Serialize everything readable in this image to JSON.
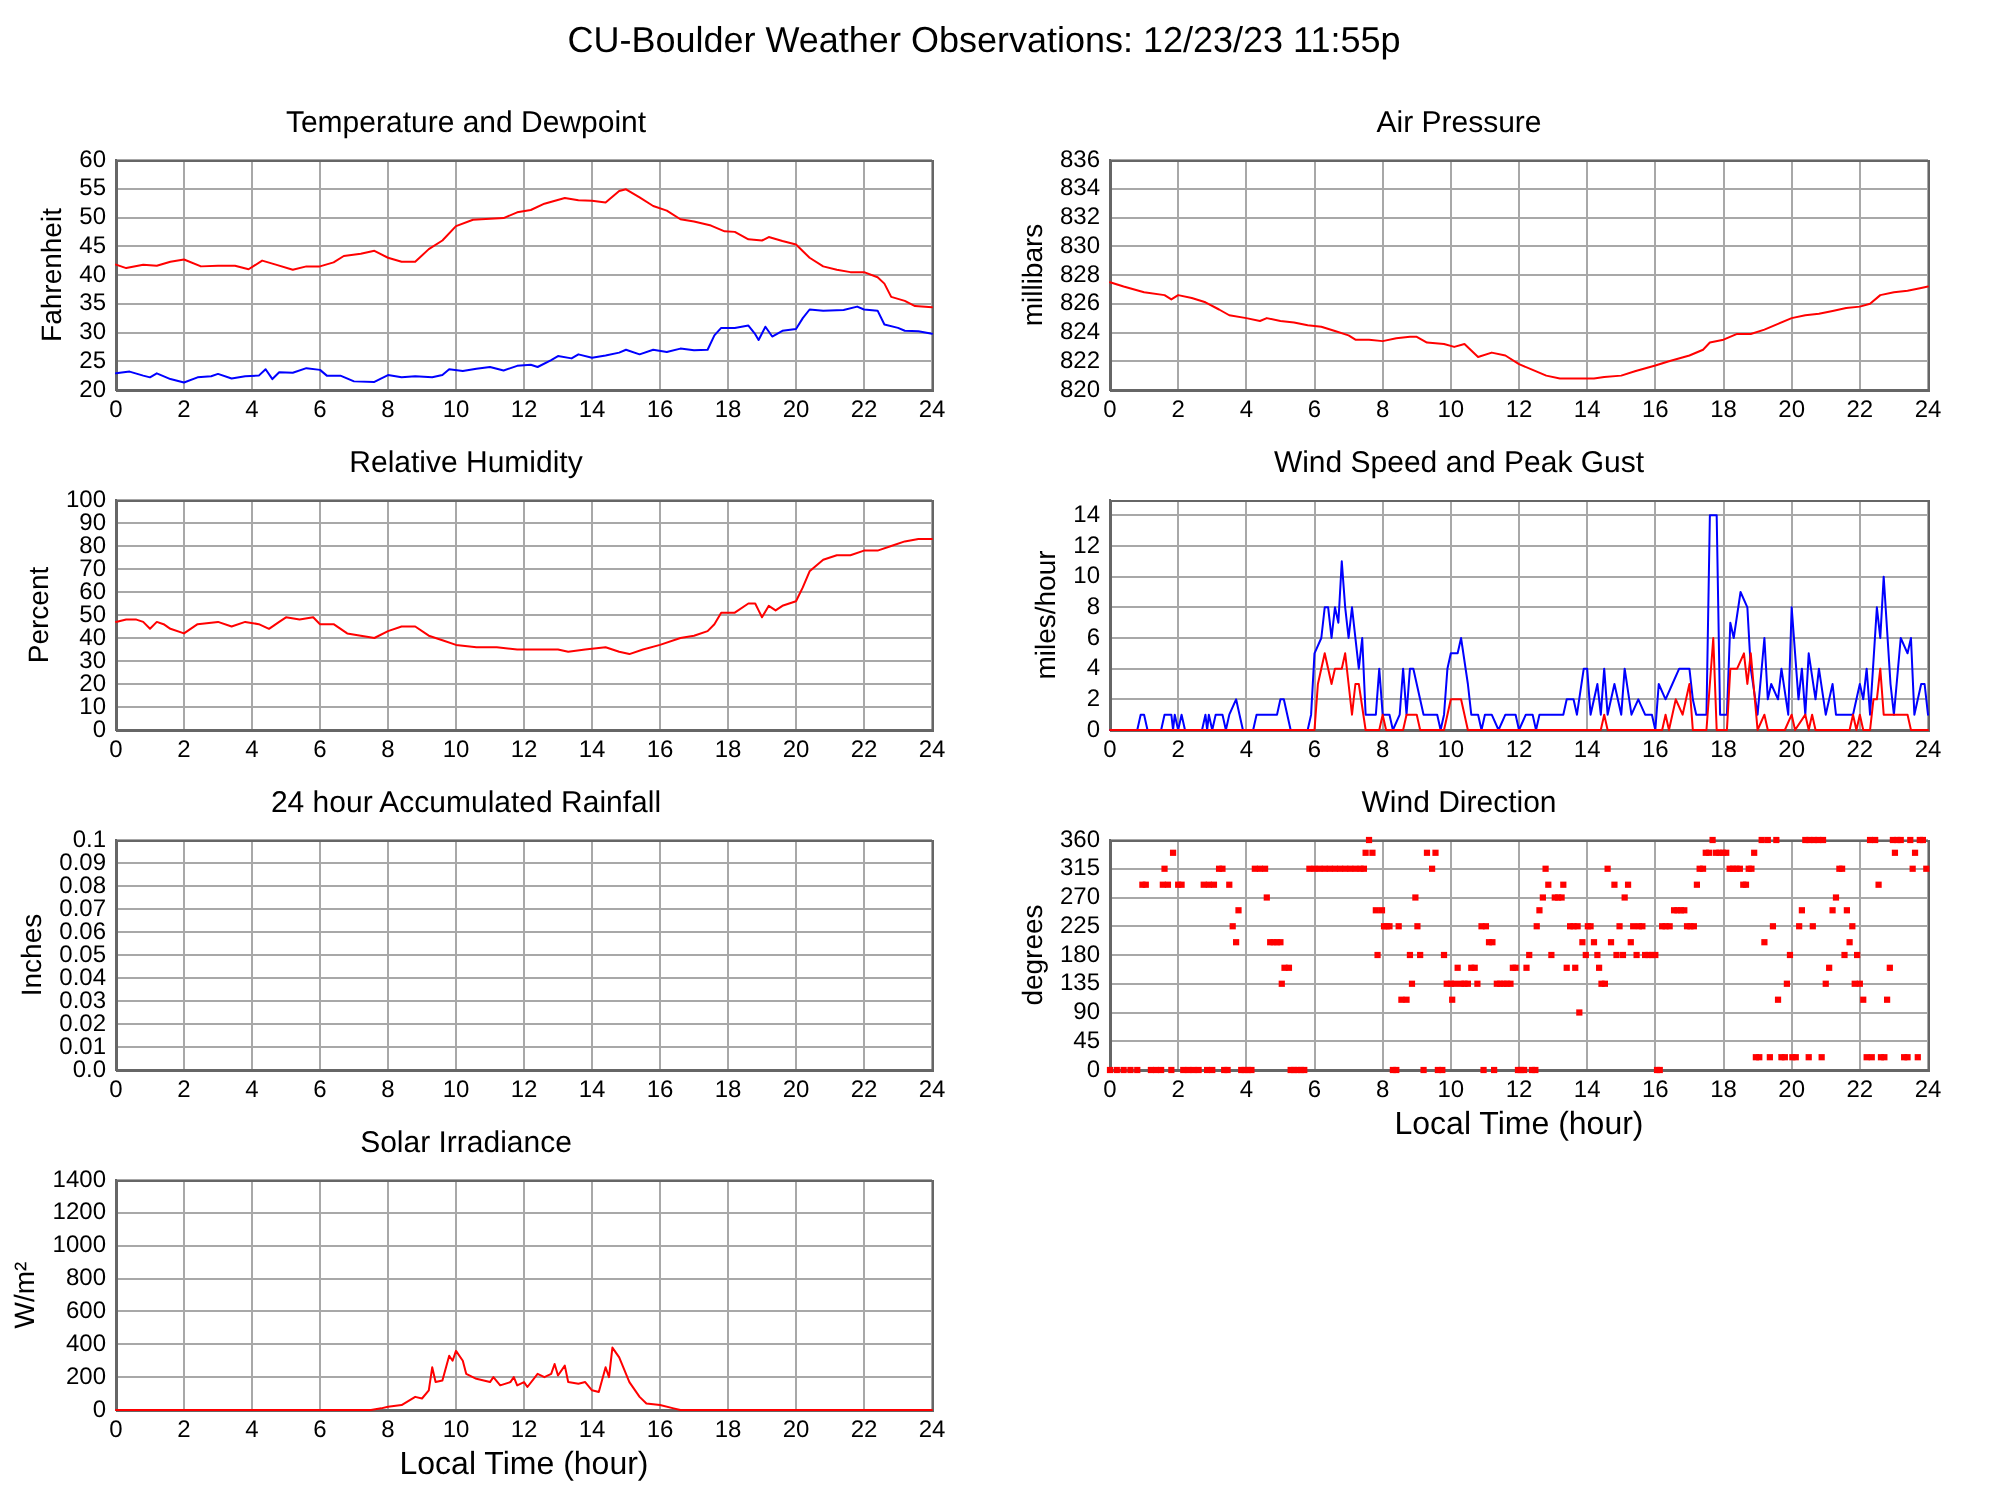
{
  "chart_data": [
    {
      "type": "other",
      "title": "CU-Boulder Weather Observations: 12/23/23 11:55p"
    },
    {
      "type": "line",
      "title": "Temperature and Dewpoint",
      "ylabel": "Fahrenheit",
      "xlim": [
        0,
        24
      ],
      "xticks": [
        0,
        2,
        4,
        6,
        8,
        10,
        12,
        14,
        16,
        18,
        20,
        22,
        24
      ],
      "ylim": [
        20,
        60
      ],
      "yticks": [
        20,
        25,
        30,
        35,
        40,
        45,
        50,
        55,
        60
      ],
      "grid": true,
      "series": [
        {
          "color": "#ff0000",
          "x": [
            0,
            0.3,
            0.8,
            1.2,
            1.6,
            2.0,
            2.5,
            3.0,
            3.5,
            3.9,
            4.3,
            4.7,
            5.2,
            5.6,
            6.0,
            6.4,
            6.7,
            7.2,
            7.6,
            8.0,
            8.4,
            8.8,
            9.2,
            9.6,
            10.0,
            10.5,
            11.0,
            11.4,
            11.8,
            12.2,
            12.6,
            13.2,
            13.6,
            14.0,
            14.4,
            14.8,
            15.0,
            15.4,
            15.8,
            16.2,
            16.6,
            17.0,
            17.5,
            17.9,
            18.2,
            18.6,
            19.0,
            19.2,
            19.6,
            20.0,
            20.4,
            20.8,
            21.2,
            21.6,
            22.0,
            22.4,
            22.6,
            22.8,
            23.2,
            23.5,
            24.0
          ],
          "values": [
            41.8,
            41.2,
            41.8,
            41.6,
            42.3,
            42.7,
            41.5,
            41.6,
            41.6,
            41.0,
            42.5,
            41.8,
            40.9,
            41.5,
            41.5,
            42.2,
            43.3,
            43.7,
            44.2,
            43.0,
            42.3,
            42.3,
            44.5,
            46.0,
            48.5,
            49.6,
            49.8,
            49.9,
            50.9,
            51.3,
            52.4,
            53.4,
            53.0,
            52.9,
            52.6,
            54.6,
            54.9,
            53.5,
            52.0,
            51.2,
            49.7,
            49.3,
            48.6,
            47.6,
            47.5,
            46.2,
            46.0,
            46.6,
            45.9,
            45.3,
            43.0,
            41.5,
            40.9,
            40.5,
            40.5,
            39.6,
            38.5,
            36.2,
            35.5,
            34.6,
            34.4
          ]
        },
        {
          "color": "#0000ff",
          "x": [
            0,
            0.4,
            0.8,
            1.0,
            1.2,
            1.6,
            2.0,
            2.4,
            2.8,
            3.0,
            3.4,
            3.8,
            4.2,
            4.4,
            4.6,
            4.8,
            5.2,
            5.6,
            6.0,
            6.2,
            6.6,
            7.0,
            7.6,
            8.0,
            8.4,
            8.8,
            9.3,
            9.6,
            9.8,
            10.2,
            10.6,
            11.0,
            11.4,
            11.8,
            12.2,
            12.4,
            12.8,
            13.0,
            13.4,
            13.6,
            14.0,
            14.4,
            14.8,
            15.0,
            15.4,
            15.8,
            16.2,
            16.6,
            17.0,
            17.4,
            17.6,
            17.8,
            18.2,
            18.6,
            18.8,
            18.9,
            19.1,
            19.3,
            19.6,
            20.0,
            20.2,
            20.4,
            20.8,
            21.4,
            21.8,
            22.0,
            22.4,
            22.6,
            23.0,
            23.2,
            23.6,
            24.0
          ],
          "values": [
            22.9,
            23.2,
            22.5,
            22.2,
            22.9,
            21.9,
            21.3,
            22.2,
            22.4,
            22.8,
            22.0,
            22.4,
            22.5,
            23.6,
            21.9,
            23.1,
            23.0,
            23.8,
            23.5,
            22.5,
            22.5,
            21.5,
            21.4,
            22.6,
            22.2,
            22.4,
            22.2,
            22.6,
            23.6,
            23.3,
            23.7,
            24.0,
            23.4,
            24.2,
            24.4,
            24.0,
            25.2,
            25.9,
            25.5,
            26.2,
            25.6,
            26.0,
            26.5,
            27.0,
            26.2,
            27.0,
            26.6,
            27.2,
            26.9,
            27.0,
            29.5,
            30.8,
            30.8,
            31.2,
            29.7,
            28.7,
            31.0,
            29.3,
            30.3,
            30.6,
            32.5,
            34.0,
            33.8,
            33.9,
            34.5,
            34.0,
            33.8,
            31.4,
            30.8,
            30.3,
            30.2,
            29.8
          ]
        }
      ]
    },
    {
      "type": "line",
      "title": "Air Pressure",
      "ylabel": "millibars",
      "xlim": [
        0,
        24
      ],
      "xticks": [
        0,
        2,
        4,
        6,
        8,
        10,
        12,
        14,
        16,
        18,
        20,
        22,
        24
      ],
      "ylim": [
        820,
        836
      ],
      "yticks": [
        820,
        822,
        824,
        826,
        828,
        830,
        832,
        834,
        836
      ],
      "grid": true,
      "series": [
        {
          "color": "#ff0000",
          "x": [
            0,
            0.4,
            1.0,
            1.6,
            1.8,
            2.0,
            2.4,
            2.8,
            3.2,
            3.5,
            4.0,
            4.4,
            4.6,
            5.0,
            5.4,
            5.8,
            6.2,
            6.6,
            7.0,
            7.2,
            7.6,
            8.0,
            8.4,
            8.8,
            9.0,
            9.3,
            9.8,
            10.1,
            10.4,
            10.8,
            11.2,
            11.6,
            12.0,
            12.4,
            12.8,
            13.2,
            13.8,
            14.2,
            14.5,
            15.0,
            15.4,
            16.0,
            16.4,
            17.0,
            17.4,
            17.6,
            18.0,
            18.4,
            18.8,
            19.2,
            19.6,
            20.0,
            20.4,
            20.8,
            21.2,
            21.6,
            22.0,
            22.3,
            22.6,
            23.0,
            23.4,
            23.8,
            24.0
          ],
          "values": [
            827.5,
            827.2,
            826.8,
            826.6,
            826.3,
            826.6,
            826.4,
            826.1,
            825.6,
            825.2,
            825.0,
            824.8,
            825.0,
            824.8,
            824.7,
            824.5,
            824.4,
            824.1,
            823.8,
            823.5,
            823.5,
            823.4,
            823.6,
            823.7,
            823.7,
            823.3,
            823.2,
            823.0,
            823.2,
            822.3,
            822.6,
            822.4,
            821.8,
            821.4,
            821.0,
            820.8,
            820.8,
            820.8,
            820.9,
            821.0,
            821.3,
            821.7,
            822.0,
            822.4,
            822.8,
            823.3,
            823.5,
            823.9,
            823.9,
            824.2,
            824.6,
            825.0,
            825.2,
            825.3,
            825.5,
            825.7,
            825.8,
            826.0,
            826.6,
            826.8,
            826.9,
            827.1,
            827.2
          ]
        }
      ]
    },
    {
      "type": "line",
      "title": "Relative Humidity",
      "ylabel": "Percent",
      "xlim": [
        0,
        24
      ],
      "xticks": [
        0,
        2,
        4,
        6,
        8,
        10,
        12,
        14,
        16,
        18,
        20,
        22,
        24
      ],
      "ylim": [
        0,
        100
      ],
      "yticks": [
        0,
        10,
        20,
        30,
        40,
        50,
        60,
        70,
        80,
        90,
        100
      ],
      "grid": true,
      "series": [
        {
          "color": "#ff0000",
          "x": [
            0,
            0.3,
            0.6,
            0.8,
            1.0,
            1.2,
            1.4,
            1.6,
            2.0,
            2.4,
            3.0,
            3.4,
            3.8,
            4.2,
            4.5,
            4.8,
            5.0,
            5.4,
            5.8,
            6.0,
            6.4,
            6.8,
            7.2,
            7.6,
            8.0,
            8.4,
            8.8,
            9.2,
            9.6,
            10.0,
            10.6,
            11.2,
            11.8,
            12.2,
            12.6,
            13.0,
            13.3,
            13.8,
            14.4,
            14.8,
            15.1,
            15.5,
            16.0,
            16.6,
            17.0,
            17.4,
            17.6,
            17.8,
            18.2,
            18.6,
            18.8,
            18.9,
            19.0,
            19.2,
            19.4,
            19.6,
            20.0,
            20.2,
            20.4,
            20.8,
            21.2,
            21.6,
            22.0,
            22.4,
            22.8,
            23.2,
            23.6,
            24.0
          ],
          "values": [
            47,
            48,
            48,
            47,
            44,
            47,
            46,
            44,
            42,
            46,
            47,
            45,
            47,
            46,
            44,
            47,
            49,
            48,
            49,
            46,
            46,
            42,
            41,
            40,
            43,
            45,
            45,
            41,
            39,
            37,
            36,
            36,
            35,
            35,
            35,
            35,
            34,
            35,
            36,
            34,
            33,
            35,
            37,
            40,
            41,
            43,
            46,
            51,
            51,
            55,
            55,
            52,
            49,
            54,
            52,
            54,
            56,
            62,
            69,
            74,
            76,
            76,
            78,
            78,
            80,
            82,
            83,
            83
          ]
        }
      ]
    },
    {
      "type": "line",
      "title": "Wind Speed and Peak Gust",
      "ylabel": "miles/hour",
      "xlim": [
        0,
        24
      ],
      "xticks": [
        0,
        2,
        4,
        6,
        8,
        10,
        12,
        14,
        16,
        18,
        20,
        22,
        24
      ],
      "ylim": [
        0,
        15
      ],
      "yticks": [
        0,
        2,
        4,
        6,
        8,
        10,
        12,
        14
      ],
      "grid": true,
      "series": [
        {
          "color": "#0000ff",
          "x": [
            0,
            0.8,
            0.9,
            1.0,
            1.1,
            1.5,
            1.6,
            1.8,
            1.85,
            1.9,
            2.0,
            2.1,
            2.2,
            2.7,
            2.8,
            2.85,
            2.9,
            3.0,
            3.1,
            3.3,
            3.4,
            3.5,
            3.7,
            3.8,
            3.9,
            4.2,
            4.3,
            4.9,
            5.0,
            5.1,
            5.3,
            5.8,
            5.9,
            6.0,
            6.2,
            6.3,
            6.4,
            6.5,
            6.6,
            6.7,
            6.8,
            6.9,
            7.0,
            7.1,
            7.3,
            7.4,
            7.5,
            7.8,
            7.9,
            8.0,
            8.2,
            8.3,
            8.5,
            8.6,
            8.7,
            8.8,
            8.9,
            9.2,
            9.6,
            9.7,
            9.8,
            9.9,
            10.0,
            10.2,
            10.3,
            10.5,
            10.6,
            10.8,
            10.9,
            11.0,
            11.2,
            11.4,
            11.6,
            11.9,
            12.0,
            12.2,
            12.4,
            12.5,
            12.6,
            13.3,
            13.4,
            13.6,
            13.7,
            13.9,
            14.0,
            14.1,
            14.3,
            14.4,
            14.5,
            14.6,
            14.8,
            15.0,
            15.1,
            15.3,
            15.5,
            15.7,
            15.9,
            16.0,
            16.1,
            16.3,
            16.5,
            16.7,
            17.0,
            17.1,
            17.2,
            17.5,
            17.6,
            17.8,
            17.9,
            18.1,
            18.2,
            18.3,
            18.5,
            18.7,
            18.8,
            19.0,
            19.2,
            19.3,
            19.4,
            19.6,
            19.7,
            19.9,
            20.0,
            20.2,
            20.3,
            20.4,
            20.5,
            20.7,
            20.8,
            21.0,
            21.2,
            21.3,
            21.8,
            21.9,
            22.0,
            22.1,
            22.2,
            22.3,
            22.5,
            22.6,
            22.7,
            22.9,
            23.0,
            23.2,
            23.4,
            23.5,
            23.6,
            23.8,
            23.9,
            24.0
          ],
          "values": [
            0,
            0,
            1,
            1,
            0,
            0,
            1,
            1,
            0,
            1,
            0,
            1,
            0,
            0,
            1,
            0,
            1,
            0,
            1,
            1,
            0,
            1,
            2,
            1,
            0,
            0,
            1,
            1,
            2,
            2,
            0,
            0,
            1,
            5,
            6,
            8,
            8,
            6,
            8,
            7,
            11,
            8,
            6,
            8,
            4,
            6,
            1,
            1,
            4,
            1,
            1,
            0,
            1,
            4,
            1,
            4,
            4,
            1,
            1,
            0,
            1,
            4,
            5,
            5,
            6,
            3,
            1,
            1,
            0,
            1,
            1,
            0,
            1,
            1,
            0,
            1,
            1,
            0,
            1,
            1,
            2,
            2,
            1,
            4,
            4,
            1,
            3,
            1,
            4,
            1,
            3,
            1,
            4,
            1,
            2,
            1,
            1,
            0,
            3,
            2,
            3,
            4,
            4,
            2,
            1,
            1,
            14,
            14,
            1,
            1,
            7,
            6,
            9,
            8,
            4,
            1,
            6,
            2,
            3,
            2,
            4,
            1,
            8,
            2,
            4,
            1,
            5,
            2,
            4,
            1,
            3,
            1,
            1,
            2,
            3,
            2,
            4,
            1,
            8,
            6,
            10,
            3,
            1,
            6,
            5,
            6,
            1,
            3,
            3,
            1
          ]
        },
        {
          "color": "#ff0000",
          "x": [
            0,
            6.0,
            6.1,
            6.3,
            6.5,
            6.6,
            6.8,
            6.9,
            7.0,
            7.1,
            7.2,
            7.3,
            7.5,
            7.9,
            8.0,
            8.1,
            8.6,
            8.7,
            9.0,
            9.1,
            9.8,
            9.9,
            10.0,
            10.3,
            10.5,
            14.4,
            14.5,
            14.6,
            16.2,
            16.3,
            16.4,
            16.6,
            16.8,
            17.0,
            17.1,
            17.5,
            17.7,
            17.8,
            18.1,
            18.2,
            18.4,
            18.6,
            18.7,
            18.8,
            19.0,
            19.2,
            19.3,
            19.8,
            20.0,
            20.1,
            20.4,
            20.5,
            20.6,
            20.7,
            21.7,
            21.8,
            21.9,
            22.0,
            22.1,
            22.3,
            22.4,
            22.5,
            22.6,
            22.7,
            23.0,
            23.4,
            23.5,
            24.0
          ],
          "values": [
            0,
            0,
            3,
            5,
            3,
            4,
            4,
            5,
            3,
            1,
            3,
            3,
            0,
            0,
            1,
            0,
            0,
            1,
            1,
            0,
            0,
            1,
            2,
            2,
            0,
            0,
            1,
            0,
            0,
            1,
            0,
            2,
            1,
            3,
            0,
            0,
            6,
            0,
            0,
            4,
            4,
            5,
            3,
            5,
            0,
            1,
            0,
            0,
            1,
            0,
            1,
            0,
            1,
            0,
            0,
            1,
            0,
            1,
            0,
            0,
            2,
            2,
            4,
            1,
            1,
            1,
            0,
            0
          ]
        }
      ]
    },
    {
      "type": "line",
      "title": "24 hour Accumulated Rainfall",
      "ylabel": "Inches",
      "xlim": [
        0,
        24
      ],
      "xticks": [
        0,
        2,
        4,
        6,
        8,
        10,
        12,
        14,
        16,
        18,
        20,
        22,
        24
      ],
      "ylim": [
        0,
        0.1
      ],
      "yticks": [
        {
          "value": 0,
          "label": "0.0"
        },
        0.01,
        0.02,
        0.03,
        0.04,
        0.05,
        0.06,
        0.07,
        0.08,
        0.09,
        0.1
      ],
      "grid": true
    },
    {
      "type": "scatter",
      "title": "Wind Direction",
      "xlabel": "Local Time (hour)",
      "ylabel": "degrees",
      "xlim": [
        0,
        24
      ],
      "xticks": [
        0,
        2,
        4,
        6,
        8,
        10,
        12,
        14,
        16,
        18,
        20,
        22,
        24
      ],
      "ylim": [
        0,
        360
      ],
      "yticks": [
        0,
        45,
        90,
        135,
        180,
        225,
        270,
        315,
        360
      ],
      "grid": true,
      "marker": "square",
      "series": [
        {
          "color": "#ff0000",
          "x": [
            0.0,
            0.2,
            0.4,
            0.6,
            0.8,
            0.95,
            1.05,
            1.2,
            1.35,
            1.5,
            1.55,
            1.6,
            1.7,
            1.8,
            1.85,
            2.0,
            2.1,
            2.15,
            2.3,
            2.45,
            2.6,
            2.75,
            2.85,
            2.9,
            3.0,
            3.05,
            3.2,
            3.3,
            3.35,
            3.45,
            3.5,
            3.6,
            3.7,
            3.77,
            3.85,
            3.95,
            4.05,
            4.15,
            4.25,
            4.4,
            4.55,
            4.6,
            4.7,
            4.8,
            4.9,
            5.0,
            5.04,
            5.12,
            5.25,
            5.3,
            5.4,
            5.5,
            5.6,
            5.7,
            5.85,
            6.0,
            6.15,
            6.3,
            6.45,
            6.6,
            6.75,
            6.9,
            7.05,
            7.2,
            7.35,
            7.45,
            7.5,
            7.6,
            7.7,
            7.8,
            7.85,
            7.98,
            8.04,
            8.12,
            8.2,
            8.3,
            8.4,
            8.47,
            8.55,
            8.7,
            8.8,
            8.86,
            8.96,
            9.02,
            9.1,
            9.2,
            9.3,
            9.45,
            9.55,
            9.62,
            9.75,
            9.8,
            9.88,
            10.0,
            10.04,
            10.12,
            10.2,
            10.3,
            10.4,
            10.5,
            10.6,
            10.7,
            10.78,
            10.9,
            10.96,
            11.03,
            11.12,
            11.22,
            11.27,
            11.35,
            11.45,
            11.55,
            11.65,
            11.75,
            11.82,
            11.9,
            11.97,
            12.05,
            12.15,
            12.22,
            12.3,
            12.38,
            12.48,
            12.52,
            12.6,
            12.7,
            12.78,
            12.86,
            12.95,
            13.05,
            13.15,
            13.25,
            13.3,
            13.4,
            13.5,
            13.6,
            13.65,
            13.72,
            13.77,
            13.86,
            13.96,
            14.02,
            14.1,
            14.2,
            14.3,
            14.35,
            14.42,
            14.52,
            14.6,
            14.7,
            14.8,
            14.86,
            14.95,
            15.05,
            15.1,
            15.2,
            15.28,
            15.35,
            15.45,
            15.52,
            15.62,
            15.7,
            15.8,
            15.9,
            16.0,
            16.05,
            16.13,
            16.2,
            16.3,
            16.42,
            16.55,
            16.65,
            16.75,
            16.85,
            16.93,
            17.03,
            17.13,
            17.22,
            17.3,
            17.4,
            17.48,
            17.58,
            17.68,
            17.78,
            17.88,
            17.98,
            18.08,
            18.18,
            18.28,
            18.38,
            18.48,
            18.58,
            18.66,
            18.74,
            18.82,
            18.9,
            18.95,
            19.05,
            19.12,
            19.2,
            19.3,
            19.36,
            19.45,
            19.55,
            19.6,
            19.7,
            19.8,
            19.86,
            19.95,
            20.02,
            20.12,
            20.22,
            20.3,
            20.4,
            20.5,
            20.52,
            20.62,
            20.66,
            20.78,
            20.88,
            20.92,
            21.0,
            21.1,
            21.2,
            21.3,
            21.4,
            21.48,
            21.55,
            21.62,
            21.7,
            21.78,
            21.85,
            21.92,
            22.0,
            22.1,
            22.2,
            22.3,
            22.35,
            22.45,
            22.55,
            22.62,
            22.72,
            22.8,
            22.88,
            22.97,
            23.03,
            23.1,
            23.2,
            23.3,
            23.4,
            23.48,
            23.55,
            23.62,
            23.7,
            23.76,
            23.85,
            23.95
          ],
          "values": [
            0,
            0,
            0,
            0,
            0,
            290,
            290,
            0,
            0,
            0,
            290,
            315,
            290,
            0,
            340,
            290,
            290,
            0,
            0,
            0,
            0,
            290,
            0,
            290,
            0,
            290,
            315,
            315,
            0,
            0,
            290,
            225,
            200,
            250,
            0,
            0,
            0,
            0,
            315,
            315,
            315,
            270,
            200,
            200,
            200,
            200,
            135,
            160,
            160,
            0,
            0,
            0,
            0,
            0,
            315,
            315,
            315,
            315,
            315,
            315,
            315,
            315,
            315,
            315,
            315,
            315,
            340,
            360,
            340,
            250,
            180,
            250,
            225,
            225,
            225,
            0,
            0,
            225,
            110,
            110,
            180,
            135,
            270,
            225,
            180,
            0,
            340,
            315,
            340,
            0,
            0,
            180,
            135,
            135,
            110,
            135,
            160,
            135,
            135,
            135,
            160,
            160,
            135,
            225,
            0,
            225,
            200,
            200,
            0,
            135,
            135,
            135,
            135,
            135,
            160,
            160,
            0,
            0,
            0,
            160,
            180,
            0,
            0,
            225,
            250,
            270,
            315,
            290,
            180,
            270,
            270,
            270,
            290,
            160,
            225,
            225,
            160,
            225,
            90,
            200,
            180,
            225,
            225,
            200,
            180,
            160,
            135,
            135,
            315,
            200,
            290,
            180,
            225,
            180,
            270,
            290,
            200,
            225,
            180,
            225,
            225,
            180,
            180,
            180,
            180,
            0,
            0,
            225,
            225,
            225,
            250,
            250,
            250,
            250,
            225,
            225,
            225,
            290,
            315,
            315,
            340,
            340,
            360,
            340,
            340,
            340,
            340,
            315,
            315,
            315,
            315,
            290,
            290,
            315,
            315,
            340,
            20,
            20,
            360,
            200,
            360,
            20,
            225,
            360,
            110,
            20,
            20,
            135,
            180,
            20,
            20,
            225,
            250,
            360,
            20,
            360,
            225,
            360,
            360,
            20,
            360,
            135,
            160,
            250,
            270,
            315,
            315,
            180,
            250,
            200,
            225,
            135,
            180,
            135,
            110,
            20,
            360,
            20,
            360,
            290,
            20,
            20,
            110,
            160,
            360,
            340,
            360,
            360,
            20,
            20,
            360,
            315,
            340,
            20,
            360,
            360,
            315
          ]
        }
      ]
    },
    {
      "type": "line",
      "title": "Solar Irradiance",
      "xlabel": "Local Time (hour)",
      "ylabel": "W/m²",
      "xlim": [
        0,
        24
      ],
      "xticks": [
        0,
        2,
        4,
        6,
        8,
        10,
        12,
        14,
        16,
        18,
        20,
        22,
        24
      ],
      "ylim": [
        0,
        1400
      ],
      "yticks": [
        0,
        200,
        400,
        600,
        800,
        1000,
        1200,
        1400
      ],
      "grid": true,
      "series": [
        {
          "color": "#ff0000",
          "x": [
            0,
            7.5,
            7.8,
            8.0,
            8.4,
            8.8,
            9.0,
            9.2,
            9.3,
            9.4,
            9.6,
            9.8,
            9.9,
            10.0,
            10.2,
            10.3,
            10.6,
            11.0,
            11.1,
            11.3,
            11.6,
            11.7,
            11.8,
            12.0,
            12.1,
            12.4,
            12.6,
            12.8,
            12.9,
            13.0,
            13.2,
            13.3,
            13.6,
            13.8,
            14.0,
            14.2,
            14.4,
            14.5,
            14.6,
            14.8,
            15.1,
            15.4,
            15.6,
            16.0,
            16.4,
            16.6,
            24
          ],
          "values": [
            0,
            0,
            10,
            20,
            30,
            80,
            70,
            120,
            260,
            170,
            180,
            330,
            300,
            360,
            300,
            220,
            190,
            170,
            200,
            150,
            170,
            200,
            150,
            170,
            140,
            220,
            200,
            220,
            280,
            210,
            270,
            170,
            160,
            170,
            120,
            110,
            260,
            200,
            380,
            320,
            170,
            80,
            40,
            30,
            10,
            0,
            0
          ]
        }
      ]
    }
  ]
}
